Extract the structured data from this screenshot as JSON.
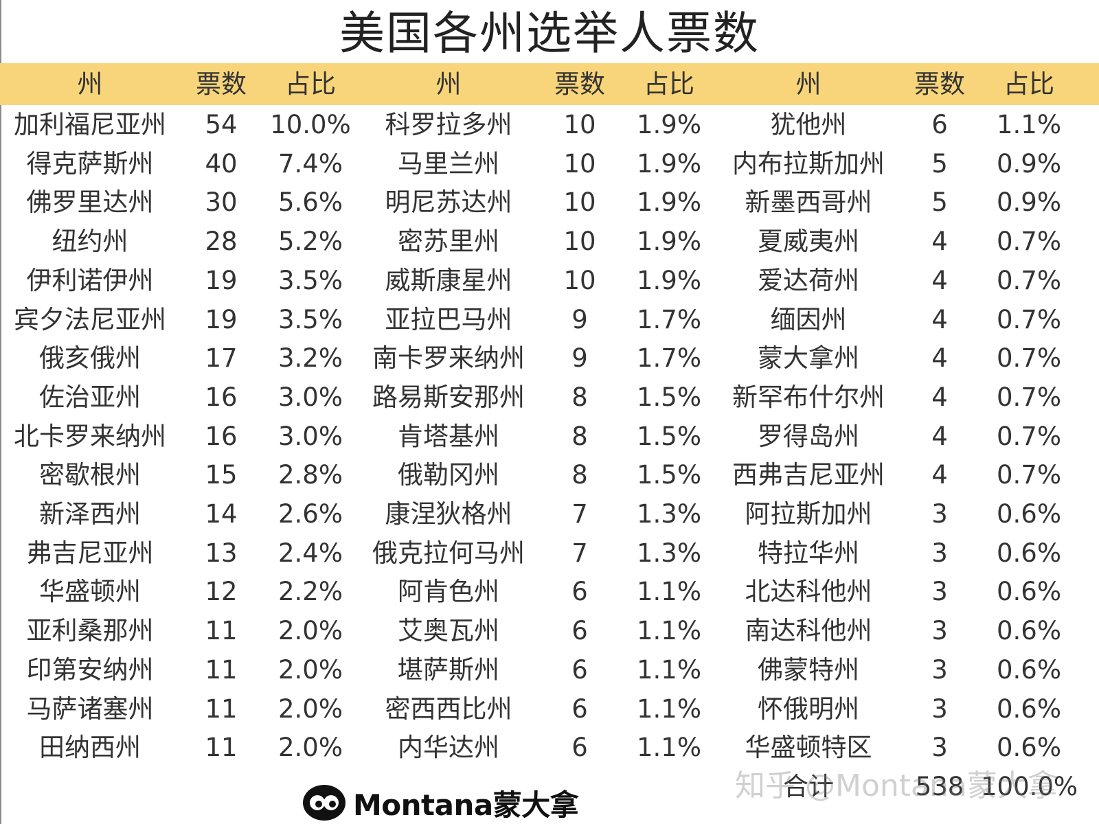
{
  "title": "美国各州选举人票数",
  "headers": [
    "州",
    "票数",
    "占比",
    "州",
    "票数",
    "占比",
    "州",
    "票数",
    "占比"
  ],
  "columns": [
    [
      {
        "state": "加利福尼亚州",
        "votes": "54",
        "share": "10.0%"
      },
      {
        "state": "得克萨斯州",
        "votes": "40",
        "share": "7.4%"
      },
      {
        "state": "佛罗里达州",
        "votes": "30",
        "share": "5.6%"
      },
      {
        "state": "纽约州",
        "votes": "28",
        "share": "5.2%"
      },
      {
        "state": "伊利诺伊州",
        "votes": "19",
        "share": "3.5%"
      },
      {
        "state": "宾夕法尼亚州",
        "votes": "19",
        "share": "3.5%"
      },
      {
        "state": "俄亥俄州",
        "votes": "17",
        "share": "3.2%"
      },
      {
        "state": "佐治亚州",
        "votes": "16",
        "share": "3.0%"
      },
      {
        "state": "北卡罗来纳州",
        "votes": "16",
        "share": "3.0%"
      },
      {
        "state": "密歇根州",
        "votes": "15",
        "share": "2.8%"
      },
      {
        "state": "新泽西州",
        "votes": "14",
        "share": "2.6%"
      },
      {
        "state": "弗吉尼亚州",
        "votes": "13",
        "share": "2.4%"
      },
      {
        "state": "华盛顿州",
        "votes": "12",
        "share": "2.2%"
      },
      {
        "state": "亚利桑那州",
        "votes": "11",
        "share": "2.0%"
      },
      {
        "state": "印第安纳州",
        "votes": "11",
        "share": "2.0%"
      },
      {
        "state": "马萨诸塞州",
        "votes": "11",
        "share": "2.0%"
      },
      {
        "state": "田纳西州",
        "votes": "11",
        "share": "2.0%"
      }
    ],
    [
      {
        "state": "科罗拉多州",
        "votes": "10",
        "share": "1.9%"
      },
      {
        "state": "马里兰州",
        "votes": "10",
        "share": "1.9%"
      },
      {
        "state": "明尼苏达州",
        "votes": "10",
        "share": "1.9%"
      },
      {
        "state": "密苏里州",
        "votes": "10",
        "share": "1.9%"
      },
      {
        "state": "威斯康星州",
        "votes": "10",
        "share": "1.9%"
      },
      {
        "state": "亚拉巴马州",
        "votes": "9",
        "share": "1.7%"
      },
      {
        "state": "南卡罗来纳州",
        "votes": "9",
        "share": "1.7%"
      },
      {
        "state": "路易斯安那州",
        "votes": "8",
        "share": "1.5%"
      },
      {
        "state": "肯塔基州",
        "votes": "8",
        "share": "1.5%"
      },
      {
        "state": "俄勒冈州",
        "votes": "8",
        "share": "1.5%"
      },
      {
        "state": "康涅狄格州",
        "votes": "7",
        "share": "1.3%"
      },
      {
        "state": "俄克拉何马州",
        "votes": "7",
        "share": "1.3%"
      },
      {
        "state": "阿肯色州",
        "votes": "6",
        "share": "1.1%"
      },
      {
        "state": "艾奥瓦州",
        "votes": "6",
        "share": "1.1%"
      },
      {
        "state": "堪萨斯州",
        "votes": "6",
        "share": "1.1%"
      },
      {
        "state": "密西西比州",
        "votes": "6",
        "share": "1.1%"
      },
      {
        "state": "内华达州",
        "votes": "6",
        "share": "1.1%"
      }
    ],
    [
      {
        "state": "犹他州",
        "votes": "6",
        "share": "1.1%"
      },
      {
        "state": "内布拉斯加州",
        "votes": "5",
        "share": "0.9%"
      },
      {
        "state": "新墨西哥州",
        "votes": "5",
        "share": "0.9%"
      },
      {
        "state": "夏威夷州",
        "votes": "4",
        "share": "0.7%"
      },
      {
        "state": "爱达荷州",
        "votes": "4",
        "share": "0.7%"
      },
      {
        "state": "缅因州",
        "votes": "4",
        "share": "0.7%"
      },
      {
        "state": "蒙大拿州",
        "votes": "4",
        "share": "0.7%"
      },
      {
        "state": "新罕布什尔州",
        "votes": "4",
        "share": "0.7%"
      },
      {
        "state": "罗得岛州",
        "votes": "4",
        "share": "0.7%"
      },
      {
        "state": "西弗吉尼亚州",
        "votes": "4",
        "share": "0.7%"
      },
      {
        "state": "阿拉斯加州",
        "votes": "3",
        "share": "0.6%"
      },
      {
        "state": "特拉华州",
        "votes": "3",
        "share": "0.6%"
      },
      {
        "state": "北达科他州",
        "votes": "3",
        "share": "0.6%"
      },
      {
        "state": "南达科他州",
        "votes": "3",
        "share": "0.6%"
      },
      {
        "state": "佛蒙特州",
        "votes": "3",
        "share": "0.6%"
      },
      {
        "state": "怀俄明州",
        "votes": "3",
        "share": "0.6%"
      },
      {
        "state": "华盛顿特区",
        "votes": "3",
        "share": "0.6%"
      },
      {
        "state": "合计",
        "votes": "538",
        "share": "100.0%"
      }
    ]
  ],
  "logo_text": "Montana蒙大拿",
  "watermark": "知乎 @Montana蒙大拿",
  "colors": {
    "header_band": "#f8d57a",
    "text": "#333333"
  }
}
